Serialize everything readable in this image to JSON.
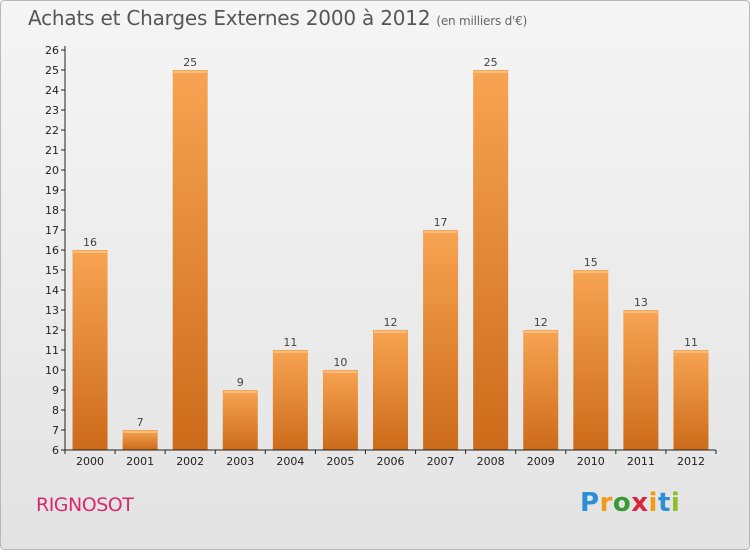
{
  "page": {
    "title": "Achats et Charges Externes 2000 à 2012",
    "unit": "(en milliers d'€)",
    "commune": "RIGNOSOT",
    "logo": {
      "p": "P",
      "r": "r",
      "o": "o",
      "x": "x",
      "i1": "i",
      "t": "t",
      "i2": "i"
    }
  },
  "chart_data": {
    "type": "bar",
    "title": "Achats et Charges Externes 2000 à 2012",
    "subtitle": "(en milliers d'€)",
    "categories": [
      "2000",
      "2001",
      "2002",
      "2003",
      "2004",
      "2005",
      "2006",
      "2007",
      "2008",
      "2009",
      "2010",
      "2011",
      "2012"
    ],
    "values": [
      16,
      7,
      25,
      9,
      11,
      10,
      12,
      17,
      25,
      12,
      15,
      13,
      11
    ],
    "ylim": [
      6,
      26
    ],
    "yticks": [
      6,
      7,
      8,
      9,
      10,
      11,
      12,
      13,
      14,
      15,
      16,
      17,
      18,
      19,
      20,
      21,
      22,
      23,
      24,
      25,
      26
    ],
    "grid": false,
    "data_labels": true,
    "bar_color_top": "#f7a452",
    "bar_color_bottom": "#cc6b1a",
    "axis_color": "#222222",
    "label_color": "#444444"
  }
}
